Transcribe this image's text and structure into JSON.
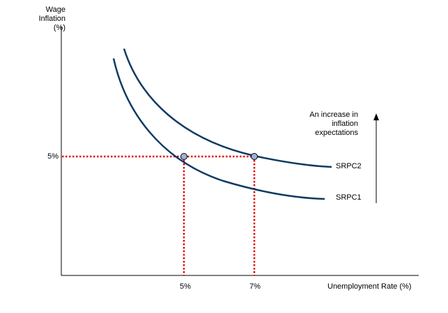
{
  "chart_data": {
    "type": "diagram",
    "ylabel": "Wage Inflation (%)",
    "xlabel": "Unemployment Rate (%)",
    "y_ticks": [
      "5%"
    ],
    "x_ticks": [
      "5%",
      "7%"
    ],
    "curves": [
      {
        "name": "SRPC1",
        "color": "#0f3a63"
      },
      {
        "name": "SRPC2",
        "color": "#0f3a63"
      }
    ],
    "points": [
      {
        "x": 5,
        "y": 5,
        "color": "#9cb3d8"
      },
      {
        "x": 7,
        "y": 5,
        "color": "#9cb3d8"
      }
    ],
    "guide_color": "#e00000",
    "annotation": "An increase in inflation expectations"
  }
}
